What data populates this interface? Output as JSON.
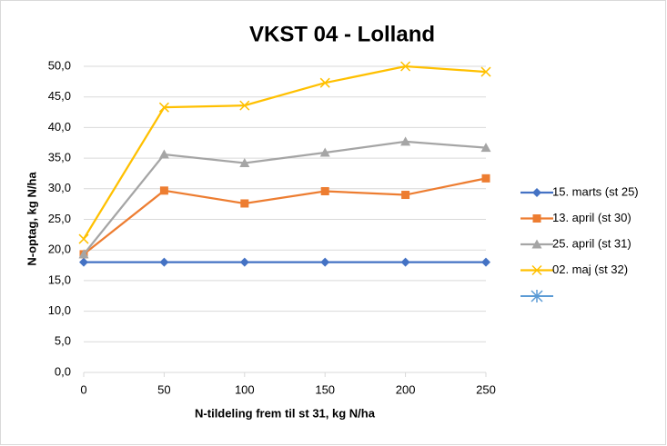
{
  "chart_data": {
    "type": "line",
    "title": "VKST 04 - Lolland",
    "x_label": "N-tildeling frem til st 31, kg N/ha",
    "y_label": "N-optag, kg N/ha",
    "x": [
      0,
      50,
      100,
      150,
      200,
      250
    ],
    "series": [
      {
        "name": "15. marts (st 25)",
        "color": "#4472c4",
        "marker": "diamond",
        "values": [
          18.0,
          18.0,
          18.0,
          18.0,
          18.0,
          18.0
        ]
      },
      {
        "name": "13. april (st 30)",
        "color": "#ed7d31",
        "marker": "square",
        "values": [
          19.3,
          29.7,
          27.6,
          29.6,
          29.0,
          31.7
        ]
      },
      {
        "name": "25. april (st 31)",
        "color": "#a5a5a5",
        "marker": "triangle",
        "values": [
          19.3,
          35.6,
          34.2,
          35.9,
          37.7,
          36.7
        ]
      },
      {
        "name": "02. maj (st 32)",
        "color": "#ffc000",
        "marker": "x",
        "values": [
          21.8,
          43.3,
          43.6,
          47.3,
          50.0,
          49.1
        ]
      }
    ],
    "xlim": [
      0,
      250
    ],
    "xticks": [
      0,
      50,
      100,
      150,
      200,
      250
    ],
    "ylim": [
      0,
      50
    ],
    "yticks": [
      {
        "value": 0,
        "label": "0,0"
      },
      {
        "value": 5,
        "label": "5,0"
      },
      {
        "value": 10,
        "label": "10,0"
      },
      {
        "value": 15,
        "label": "15,0"
      },
      {
        "value": 20,
        "label": "20,0"
      },
      {
        "value": 25,
        "label": "25,0"
      },
      {
        "value": 30,
        "label": "30,0"
      },
      {
        "value": 35,
        "label": "35,0"
      },
      {
        "value": 40,
        "label": "40,0"
      },
      {
        "value": 45,
        "label": "45,0"
      },
      {
        "value": 50,
        "label": "50,0"
      }
    ],
    "grid": true,
    "legend": "right"
  }
}
